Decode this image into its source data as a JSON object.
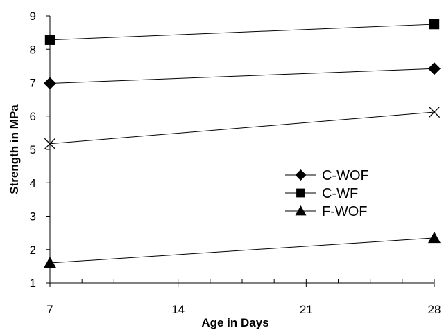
{
  "chart_data": {
    "type": "line",
    "title": "",
    "xlabel": "Age in Days",
    "ylabel": "Strength in MPa",
    "xlim": [
      7,
      28
    ],
    "ylim": [
      1,
      9
    ],
    "x_ticks": [
      7,
      14,
      21,
      28
    ],
    "y_ticks": [
      1,
      2,
      3,
      4,
      5,
      6,
      7,
      8,
      9
    ],
    "grid": false,
    "legend_position": "right",
    "series": [
      {
        "name": "C-WOF",
        "marker": "diamond",
        "x": [
          7,
          28
        ],
        "y": [
          6.98,
          7.42
        ]
      },
      {
        "name": "C-WF",
        "marker": "square",
        "x": [
          7,
          28
        ],
        "y": [
          8.28,
          8.75
        ]
      },
      {
        "name": "F-WOF",
        "marker": "triangle",
        "x": [
          7,
          28
        ],
        "y": [
          1.6,
          2.35
        ]
      },
      {
        "name": "",
        "marker": "x",
        "x": [
          7,
          28
        ],
        "y": [
          5.17,
          6.12
        ]
      }
    ]
  }
}
